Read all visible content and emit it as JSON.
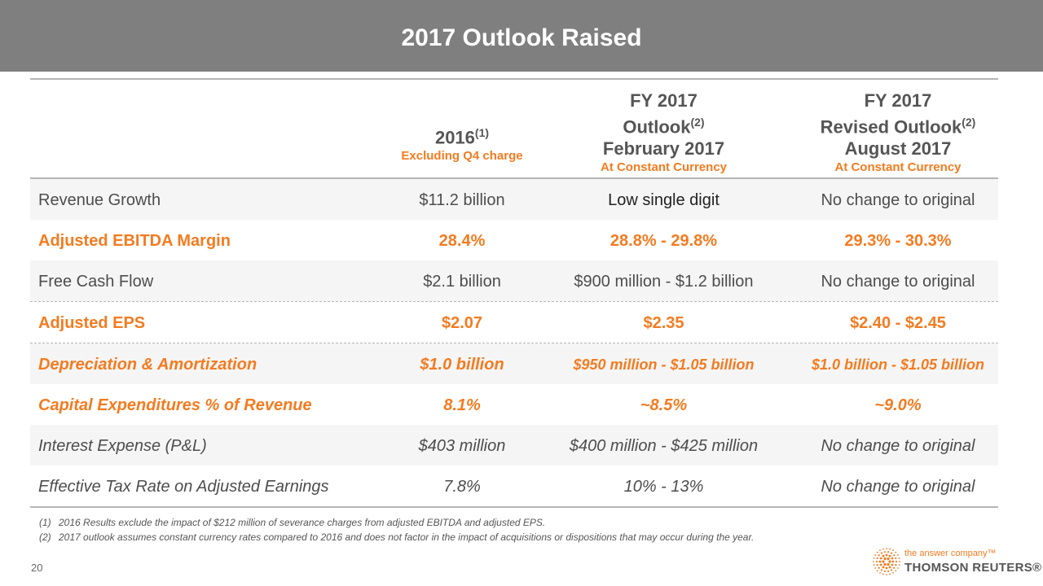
{
  "slide": {
    "title": "2017 Outlook Raised",
    "page_number": "20",
    "colors": {
      "accent": "#f47b20",
      "title_bar": "#7f7f7f",
      "text": "#4d4d4d",
      "rule": "#b5b5b5"
    }
  },
  "table": {
    "headers": [
      {
        "lines": [],
        "sup": "",
        "sub": ""
      },
      {
        "lines": [
          "2016"
        ],
        "sup": "(1)",
        "sub": "Excluding Q4 charge"
      },
      {
        "lines": [
          "FY 2017",
          "Outlook",
          "February 2017"
        ],
        "sup": "(2)",
        "sub": "At Constant Currency"
      },
      {
        "lines": [
          "FY 2017",
          "Revised Outlook",
          "August 2017"
        ],
        "sup": "(2)",
        "sub": "At Constant Currency"
      }
    ],
    "rows": [
      {
        "label": "Revenue Growth",
        "values": [
          "$11.2 billion",
          "Low single digit",
          "No change to original"
        ]
      },
      {
        "label": "Adjusted EBITDA Margin",
        "values": [
          "28.4%",
          "28.8% - 29.8%",
          "29.3% - 30.3%"
        ]
      },
      {
        "label": "Free Cash Flow",
        "values": [
          "$2.1 billion",
          "$900 million - $1.2 billion",
          "No change to original"
        ]
      },
      {
        "label": "Adjusted EPS",
        "values": [
          "$2.07",
          "$2.35",
          "$2.40 - $2.45"
        ]
      },
      {
        "label": "Depreciation & Amortization",
        "values": [
          "$1.0 billion",
          "$950 million - $1.05 billion",
          "$1.0 billion - $1.05 billion"
        ]
      },
      {
        "label": "Capital Expenditures % of Revenue",
        "values": [
          "8.1%",
          "~8.5%",
          "~9.0%"
        ]
      },
      {
        "label": "Interest Expense (P&L)",
        "values": [
          "$403 million",
          "$400 million - $425 million",
          "No change to original"
        ]
      },
      {
        "label": "Effective Tax Rate on Adjusted Earnings",
        "values": [
          "7.8%",
          "10% - 13%",
          "No change to original"
        ]
      }
    ]
  },
  "footnotes": [
    {
      "num": "(1)",
      "text": "2016 Results exclude the impact of $212 million of severance charges from adjusted EBITDA and adjusted EPS."
    },
    {
      "num": "(2)",
      "text": "2017 outlook assumes constant currency rates compared to 2016 and does not factor in the impact of acquisitions or dispositions that may occur during the year."
    }
  ],
  "logo": {
    "tagline": "the answer company™",
    "brand": "THOMSON REUTERS®",
    "icon": "thomson-reuters-dot-circle-icon"
  }
}
